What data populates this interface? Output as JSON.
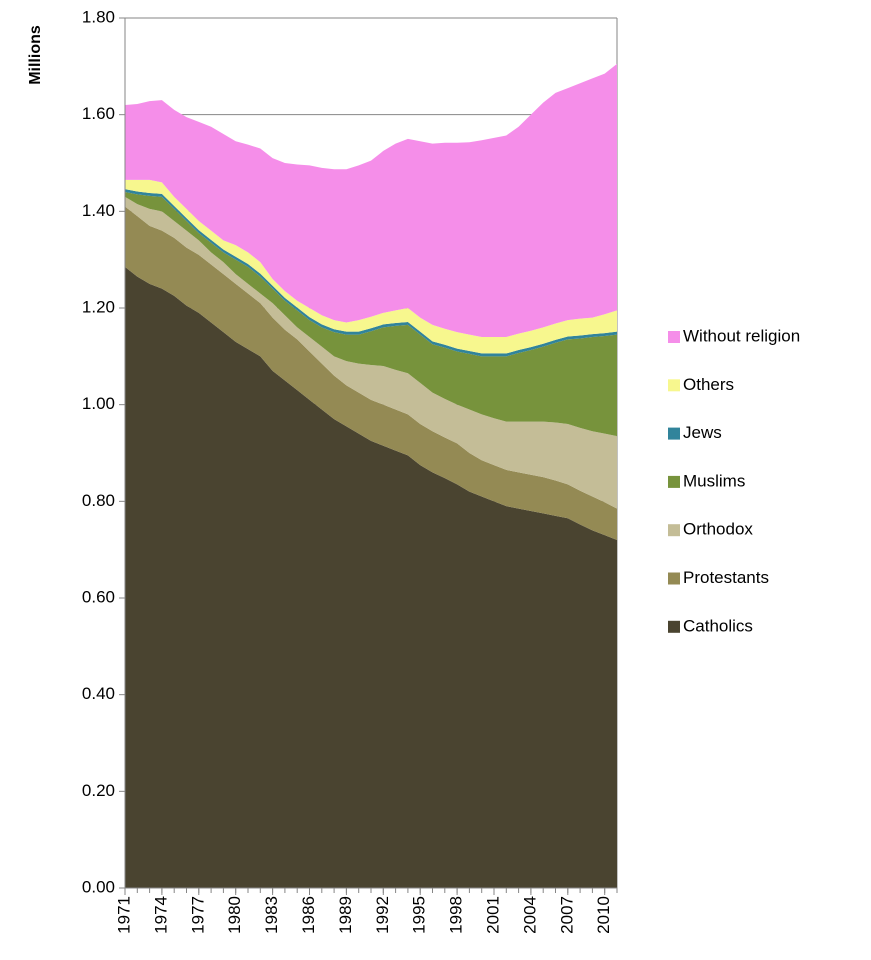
{
  "chart_data": {
    "type": "stacked_area",
    "y_label": "Millions",
    "x": [
      1971,
      1972,
      1973,
      1974,
      1975,
      1976,
      1977,
      1978,
      1979,
      1980,
      1981,
      1982,
      1983,
      1984,
      1985,
      1986,
      1987,
      1988,
      1989,
      1990,
      1991,
      1992,
      1993,
      1994,
      1995,
      1996,
      1997,
      1998,
      1999,
      2000,
      2001,
      2002,
      2003,
      2004,
      2005,
      2006,
      2007,
      2008,
      2009,
      2010,
      2011
    ],
    "xlim": [
      1971,
      2011
    ],
    "xticks": [
      1971,
      1974,
      1977,
      1980,
      1983,
      1986,
      1989,
      1992,
      1995,
      1998,
      2001,
      2004,
      2007,
      2010
    ],
    "ylim": [
      0,
      1.8
    ],
    "yticks": [
      {
        "value": 0,
        "label": "0.00"
      },
      {
        "value": 0.2,
        "label": "0.20"
      },
      {
        "value": 0.4,
        "label": "0.40"
      },
      {
        "value": 0.6,
        "label": "0.60"
      },
      {
        "value": 0.8,
        "label": "0.80"
      },
      {
        "value": 1,
        "label": "1.00"
      },
      {
        "value": 1.2,
        "label": "1.20"
      },
      {
        "value": 1.4,
        "label": "1.40"
      },
      {
        "value": 1.6,
        "label": "1.60"
      },
      {
        "value": 1.8,
        "label": "1.80"
      }
    ],
    "grid": true,
    "legend": "right",
    "series": [
      {
        "name": "Catholics",
        "color": "#4a4430",
        "values": [
          1.285,
          1.265,
          1.25,
          1.24,
          1.225,
          1.205,
          1.19,
          1.17,
          1.15,
          1.13,
          1.115,
          1.1,
          1.07,
          1.05,
          1.03,
          1.01,
          0.99,
          0.97,
          0.955,
          0.94,
          0.925,
          0.915,
          0.905,
          0.895,
          0.875,
          0.86,
          0.848,
          0.835,
          0.82,
          0.81,
          0.8,
          0.79,
          0.785,
          0.78,
          0.775,
          0.77,
          0.765,
          0.752,
          0.74,
          0.73,
          0.72
        ]
      },
      {
        "name": "Protestants",
        "color": "#948a54",
        "values": [
          0.125,
          0.125,
          0.12,
          0.12,
          0.12,
          0.12,
          0.12,
          0.12,
          0.12,
          0.12,
          0.115,
          0.11,
          0.11,
          0.105,
          0.105,
          0.1,
          0.095,
          0.09,
          0.085,
          0.085,
          0.085,
          0.085,
          0.085,
          0.085,
          0.085,
          0.085,
          0.084,
          0.085,
          0.08,
          0.075,
          0.075,
          0.075,
          0.075,
          0.075,
          0.075,
          0.073,
          0.07,
          0.07,
          0.07,
          0.068,
          0.065
        ]
      },
      {
        "name": "Orthodox",
        "color": "#c4bd97",
        "values": [
          0.02,
          0.025,
          0.035,
          0.04,
          0.035,
          0.035,
          0.03,
          0.025,
          0.025,
          0.02,
          0.02,
          0.02,
          0.03,
          0.03,
          0.025,
          0.03,
          0.035,
          0.04,
          0.05,
          0.06,
          0.072,
          0.08,
          0.082,
          0.085,
          0.085,
          0.08,
          0.08,
          0.08,
          0.09,
          0.095,
          0.097,
          0.1,
          0.105,
          0.11,
          0.115,
          0.12,
          0.125,
          0.13,
          0.135,
          0.142,
          0.15
        ]
      },
      {
        "name": "Muslims",
        "color": "#77933c",
        "values": [
          0.01,
          0.02,
          0.027,
          0.03,
          0.025,
          0.02,
          0.015,
          0.02,
          0.02,
          0.03,
          0.035,
          0.035,
          0.03,
          0.03,
          0.035,
          0.035,
          0.04,
          0.05,
          0.055,
          0.06,
          0.07,
          0.08,
          0.091,
          0.1,
          0.1,
          0.1,
          0.106,
          0.11,
          0.115,
          0.12,
          0.128,
          0.135,
          0.142,
          0.148,
          0.155,
          0.165,
          0.175,
          0.185,
          0.195,
          0.202,
          0.21
        ]
      },
      {
        "name": "Jews",
        "color": "#31849b",
        "values": [
          0.006,
          0.006,
          0.006,
          0.006,
          0.006,
          0.006,
          0.006,
          0.006,
          0.006,
          0.006,
          0.006,
          0.006,
          0.006,
          0.006,
          0.006,
          0.006,
          0.006,
          0.006,
          0.006,
          0.006,
          0.006,
          0.006,
          0.006,
          0.006,
          0.006,
          0.006,
          0.006,
          0.006,
          0.006,
          0.006,
          0.006,
          0.006,
          0.006,
          0.006,
          0.006,
          0.006,
          0.006,
          0.006,
          0.006,
          0.006,
          0.006
        ]
      },
      {
        "name": "Others",
        "color": "#f7f78e",
        "values": [
          0.019,
          0.024,
          0.027,
          0.024,
          0.019,
          0.019,
          0.019,
          0.019,
          0.019,
          0.024,
          0.024,
          0.024,
          0.014,
          0.014,
          0.014,
          0.019,
          0.019,
          0.019,
          0.019,
          0.024,
          0.024,
          0.024,
          0.026,
          0.029,
          0.029,
          0.034,
          0.033,
          0.034,
          0.034,
          0.034,
          0.034,
          0.034,
          0.034,
          0.034,
          0.034,
          0.034,
          0.034,
          0.035,
          0.034,
          0.039,
          0.044
        ]
      },
      {
        "name": "Without religion",
        "color": "#f58ee9",
        "values": [
          0.155,
          0.157,
          0.163,
          0.17,
          0.18,
          0.19,
          0.205,
          0.215,
          0.22,
          0.215,
          0.223,
          0.235,
          0.25,
          0.265,
          0.282,
          0.295,
          0.305,
          0.312,
          0.317,
          0.32,
          0.323,
          0.335,
          0.345,
          0.35,
          0.365,
          0.375,
          0.385,
          0.392,
          0.398,
          0.407,
          0.412,
          0.417,
          0.428,
          0.447,
          0.465,
          0.477,
          0.48,
          0.487,
          0.495,
          0.498,
          0.51
        ]
      }
    ]
  }
}
